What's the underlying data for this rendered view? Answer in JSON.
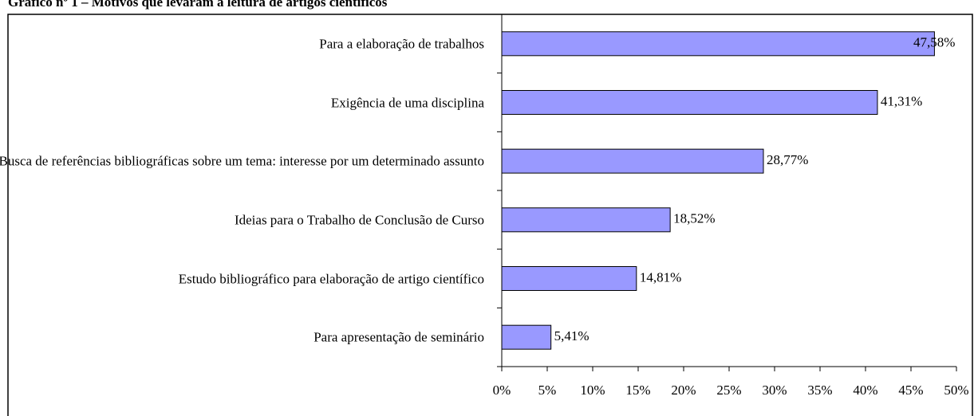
{
  "chart_data": {
    "type": "bar",
    "orientation": "horizontal",
    "title": "Gráfico nº 1 – Motivos que levaram à leitura de artigos científicos",
    "categories": [
      "Para a elaboração de trabalhos",
      "Exigência de uma disciplina",
      "Busca de referências bibliográficas sobre um tema: interesse por um determinado assunto",
      "Ideias para o Trabalho de Conclusão de Curso",
      "Estudo bibliográfico para elaboração de artigo científico",
      "Para apresentação de seminário"
    ],
    "values": [
      47.58,
      41.31,
      28.77,
      18.52,
      14.81,
      5.41
    ],
    "value_labels": [
      "47,58%",
      "41,31%",
      "28,77%",
      "18,52%",
      "14,81%",
      "5,41%"
    ],
    "color": "#9999ff",
    "xlim": [
      0,
      50
    ],
    "xticks": [
      {
        "value": 0,
        "label": "0%"
      },
      {
        "value": 5,
        "label": "5%"
      },
      {
        "value": 10,
        "label": "10%"
      },
      {
        "value": 15,
        "label": "15%"
      },
      {
        "value": 20,
        "label": "20%"
      },
      {
        "value": 25,
        "label": "25%"
      },
      {
        "value": 30,
        "label": "30%"
      },
      {
        "value": 35,
        "label": "35%"
      },
      {
        "value": 40,
        "label": "40%"
      },
      {
        "value": 45,
        "label": "45%"
      },
      {
        "value": 50,
        "label": "50%"
      }
    ]
  }
}
